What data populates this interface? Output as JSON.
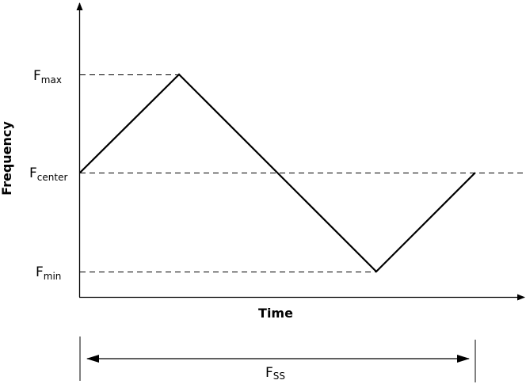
{
  "axes": {
    "y_label": "Frequency",
    "x_label": "Time"
  },
  "levels": {
    "max": {
      "main": "F",
      "sub": "max"
    },
    "center": {
      "main": "F",
      "sub": "center"
    },
    "min": {
      "main": "F",
      "sub": "min"
    }
  },
  "period": {
    "main": "F",
    "sub": "SS"
  },
  "colors": {
    "line": "#000000",
    "background": "#ffffff"
  }
}
